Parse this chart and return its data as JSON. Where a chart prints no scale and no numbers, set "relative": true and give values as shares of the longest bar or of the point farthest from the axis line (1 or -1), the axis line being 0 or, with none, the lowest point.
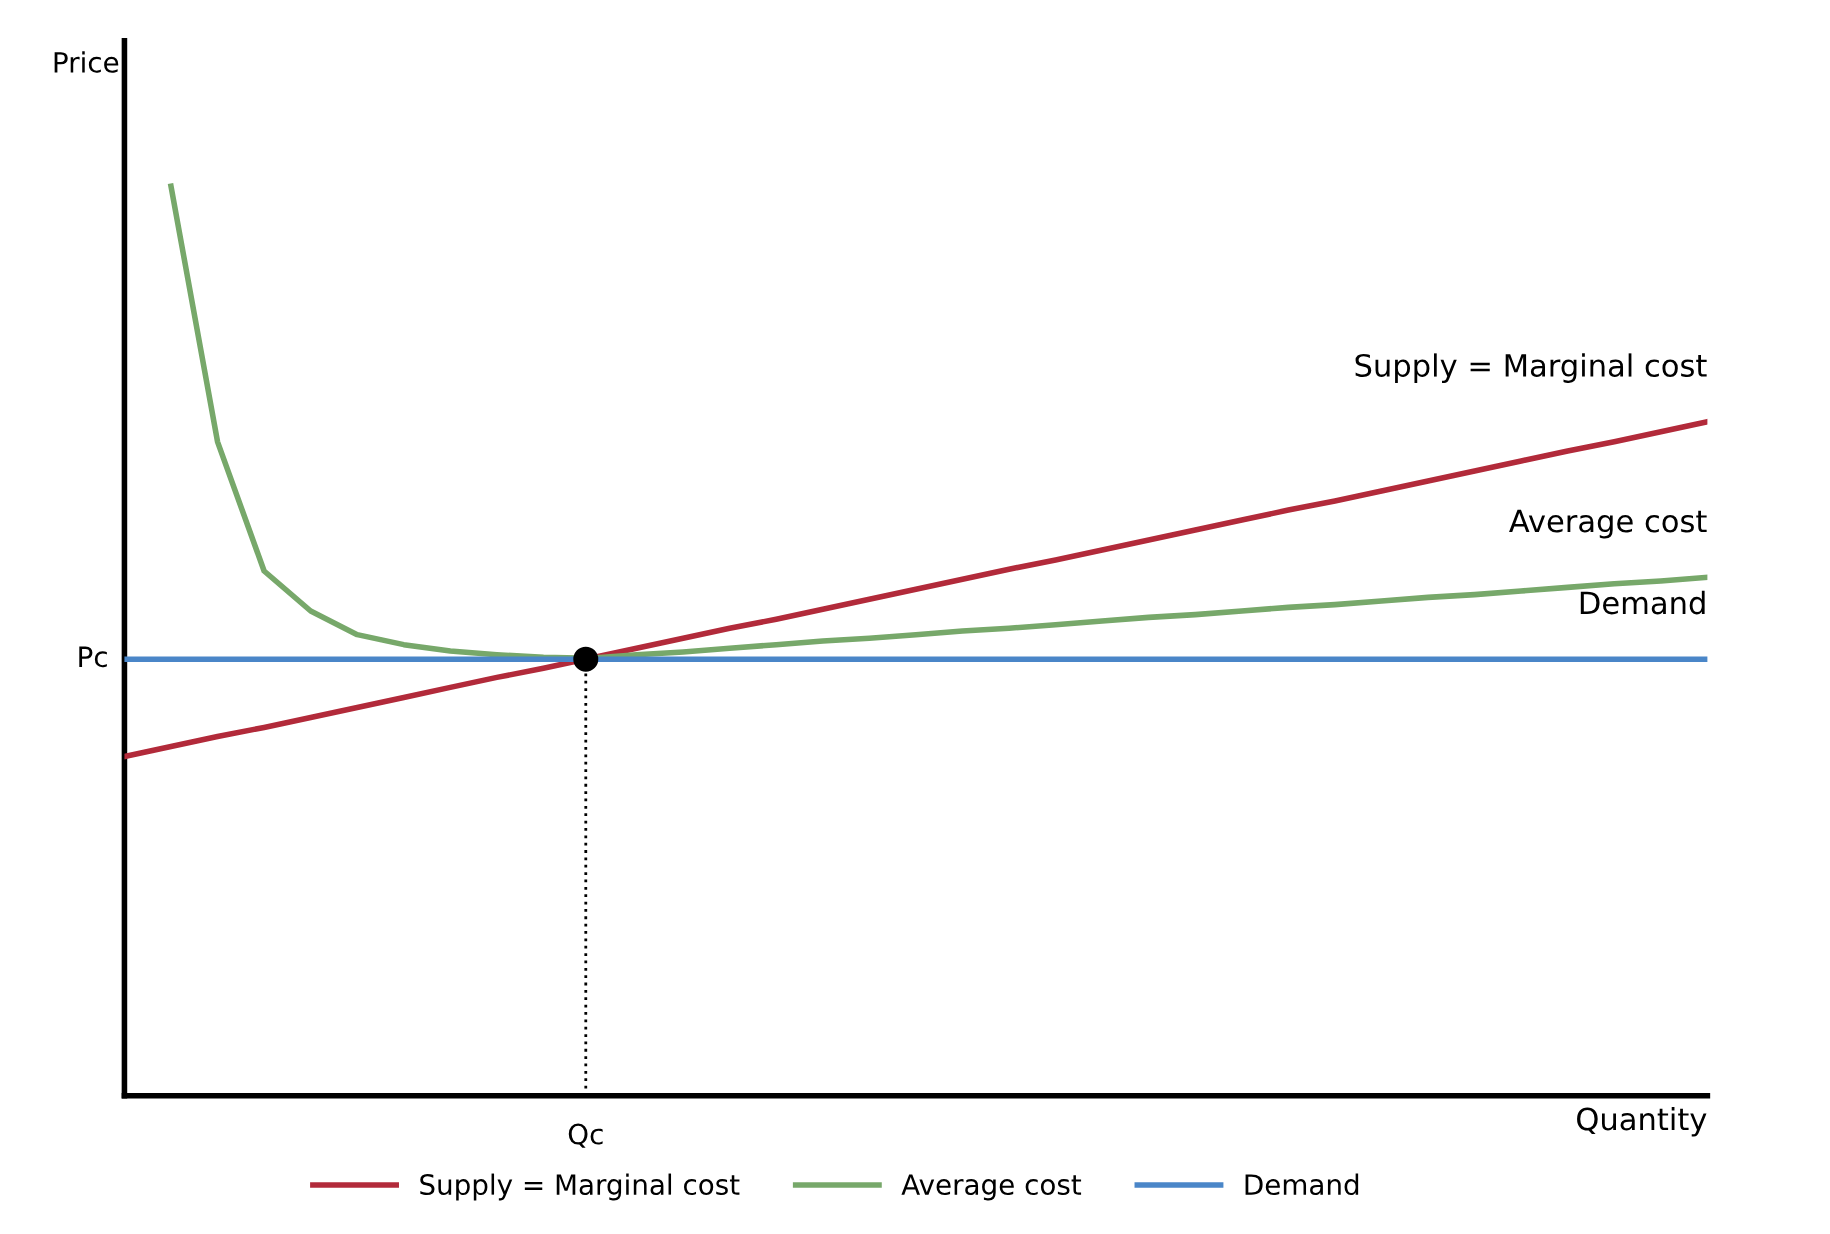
{
  "chart_data": {
    "type": "line",
    "relative": true,
    "xlabel": "Quantity",
    "ylabel": "Price",
    "categories": [
      null,
      null,
      null,
      null,
      null,
      null,
      null,
      null,
      null,
      null,
      null,
      null,
      null,
      null,
      null,
      null,
      null,
      null,
      null,
      null,
      null,
      null,
      null,
      null,
      null,
      null,
      null,
      null,
      null,
      null,
      null,
      null,
      null,
      null,
      null
    ],
    "series": [
      {
        "name": "Supply = Marginal cost",
        "color": "#b22a3a",
        "values": [
          0.373,
          0.384,
          0.395,
          0.405,
          0.416,
          0.427,
          0.438,
          0.449,
          0.46,
          0.47,
          0.481,
          0.492,
          0.503,
          0.514,
          0.524,
          0.535,
          0.546,
          0.557,
          0.568,
          0.579,
          0.589,
          0.6,
          0.611,
          0.622,
          0.633,
          0.644,
          0.654,
          0.665,
          0.676,
          0.687,
          0.698,
          0.709,
          0.719,
          0.73,
          0.741
        ]
      },
      {
        "name": "Average cost",
        "color": "#77a86a",
        "values": [
          null,
          1,
          0.719,
          0.577,
          0.533,
          0.507,
          0.496,
          0.489,
          0.485,
          0.482,
          0.481,
          0.485,
          0.488,
          0.492,
          0.496,
          0.5,
          0.503,
          0.507,
          0.511,
          0.514,
          0.518,
          0.522,
          0.526,
          0.529,
          0.533,
          0.537,
          0.54,
          0.544,
          0.548,
          0.551,
          0.555,
          0.559,
          0.563,
          0.566,
          0.57
        ]
      },
      {
        "name": "Demand",
        "color": "#4a86c8",
        "values": [
          0.48,
          0.48,
          0.48,
          0.48,
          0.48,
          0.48,
          0.48,
          0.48,
          0.48,
          0.48,
          0.48,
          0.48,
          0.48,
          0.48,
          0.48,
          0.48,
          0.48,
          0.48,
          0.48,
          0.48,
          0.48,
          0.48,
          0.48,
          0.48,
          0.48,
          0.48,
          0.48,
          0.48,
          0.48,
          0.48,
          0.48,
          0.48,
          0.48,
          0.48,
          0.48
        ]
      }
    ],
    "annotations": [
      "Supply = Marginal cost",
      "Average cost",
      "Demand",
      "Pc",
      "Qc"
    ],
    "legend": "bottom",
    "marker": "none",
    "line_style": "solid"
  }
}
